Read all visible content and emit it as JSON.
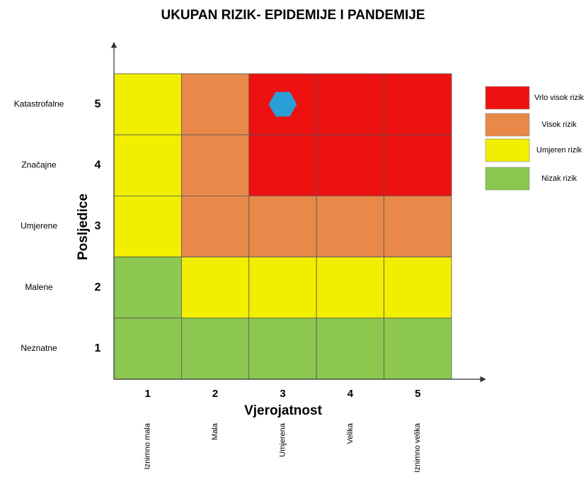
{
  "title": "UKUPAN RIZIK- EPIDEMIJE I PANDEMIJE",
  "y_axis": {
    "title": "Posljedice",
    "levels": [
      {
        "number": 5,
        "label": "Katastrofalne"
      },
      {
        "number": 4,
        "label": "Značajne"
      },
      {
        "number": 3,
        "label": "Umjerene"
      },
      {
        "number": 2,
        "label": "Malene"
      },
      {
        "number": 1,
        "label": "Neznatne"
      }
    ]
  },
  "x_axis": {
    "title": "Vjerojatnost",
    "levels": [
      {
        "number": 1,
        "label": "Iznimno mala"
      },
      {
        "number": 2,
        "label": "Mala"
      },
      {
        "number": 3,
        "label": "Umjerena"
      },
      {
        "number": 4,
        "label": "Velika"
      },
      {
        "number": 5,
        "label": "Iznimno velika"
      }
    ]
  },
  "legend": [
    {
      "label": "Vrlo visok rizik",
      "color": "#ee1111"
    },
    {
      "label": "Visok rizik",
      "color": "#e8894a"
    },
    {
      "label": "Umjeren rizik",
      "color": "#f2ee00"
    },
    {
      "label": "Nizak rizik",
      "color": "#8cc850"
    }
  ],
  "cells": [
    [
      2,
      1,
      0,
      0,
      0
    ],
    [
      2,
      1,
      0,
      0,
      0
    ],
    [
      2,
      1,
      1,
      1,
      1
    ],
    [
      3,
      2,
      2,
      2,
      2
    ],
    [
      3,
      3,
      3,
      3,
      3
    ]
  ],
  "assessment": {
    "likelihood": 3,
    "consequence": 5,
    "color": "#2a9fd6"
  }
}
